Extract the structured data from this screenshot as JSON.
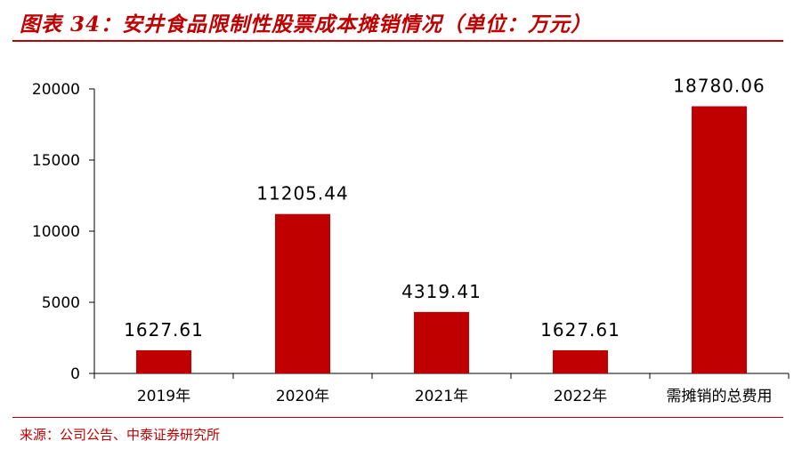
{
  "header": {
    "title": "图表 34：安井食品限制性股票成本摊销情况（单位：万元）"
  },
  "footer": {
    "source": "来源：公司公告、中泰证券研究所"
  },
  "colors": {
    "bar": "#c00000",
    "accent": "#c00000",
    "axis": "#000000"
  },
  "chart_data": {
    "type": "bar",
    "title": "",
    "xlabel": "",
    "ylabel": "",
    "categories": [
      "2019年",
      "2020年",
      "2021年",
      "2022年",
      "需摊销的总费用"
    ],
    "values": [
      1627.61,
      11205.44,
      4319.41,
      1627.61,
      18780.06
    ],
    "value_labels": [
      "1627.61",
      "11205.44",
      "4319.41",
      "1627.61",
      "18780.06"
    ],
    "ylim": [
      0,
      20000
    ],
    "yticks": [
      0,
      5000,
      10000,
      15000,
      20000
    ],
    "grid": false,
    "legend": "none"
  }
}
